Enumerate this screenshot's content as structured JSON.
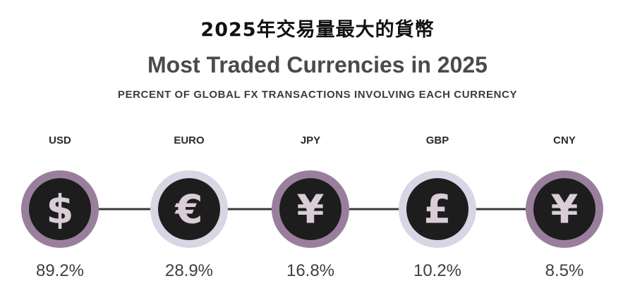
{
  "header": {
    "title_zh": "2025年交易量最大的貨幣"
  },
  "chart_data": {
    "type": "bar",
    "title": "Most Traded Currencies in 2025",
    "subtitle": "PERCENT OF GLOBAL FX TRANSACTIONS INVOLVING EACH CURRENCY",
    "categories": [
      "USD",
      "EURO",
      "JPY",
      "GBP",
      "CNY"
    ],
    "values": [
      89.2,
      28.9,
      16.8,
      10.2,
      8.5
    ],
    "value_labels": [
      "89.2%",
      "28.9%",
      "16.8%",
      "10.2%",
      "8.5%"
    ],
    "symbols": [
      "$",
      "€",
      "¥",
      "£",
      "¥"
    ],
    "symbol_icons": [
      "dollar-icon",
      "euro-icon",
      "yen-icon",
      "pound-icon",
      "yuan-icon"
    ],
    "ring_colors": [
      "#9a7f9c",
      "#d8d6e4",
      "#9a7f9c",
      "#d8d6e4",
      "#9a7f9c"
    ],
    "colors": {
      "inner": "#1d1d1d",
      "symbol": "#d9cdd6",
      "connector": "#3a3a3a"
    }
  }
}
